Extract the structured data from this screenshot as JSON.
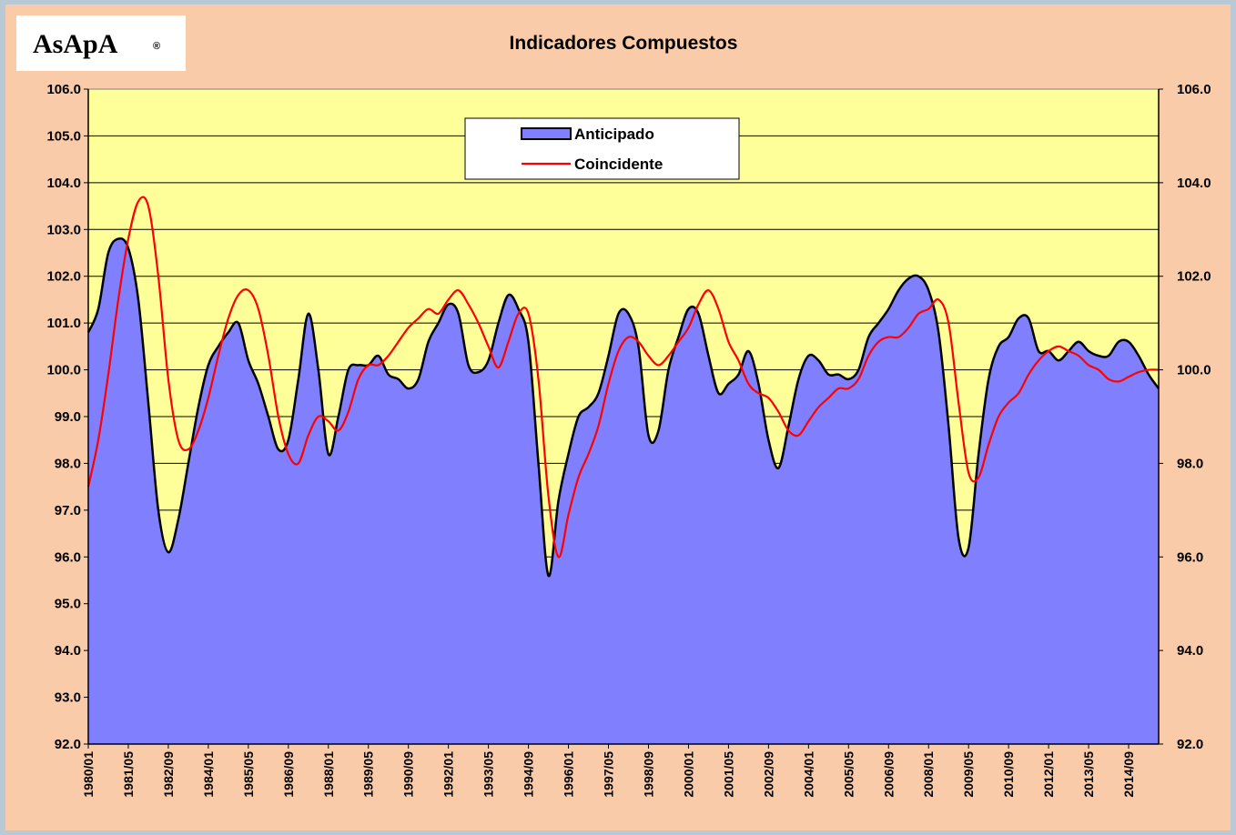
{
  "chart_data": {
    "type": "area",
    "logo": "AsApA",
    "logo_mark": "®",
    "title": "Indicadores Compuestos",
    "categories": [
      "1980/01",
      null,
      null,
      null,
      "1981/05",
      null,
      null,
      null,
      "1982/09",
      null,
      null,
      null,
      "1984/01",
      null,
      null,
      null,
      "1985/05",
      null,
      null,
      null,
      "1986/09",
      null,
      null,
      null,
      "1988/01",
      null,
      null,
      null,
      "1989/05",
      null,
      null,
      null,
      "1990/09",
      null,
      null,
      null,
      "1992/01",
      null,
      null,
      null,
      "1993/05",
      null,
      null,
      null,
      "1994/09",
      null,
      null,
      null,
      "1996/01",
      null,
      null,
      null,
      "1997/05",
      null,
      null,
      null,
      "1998/09",
      null,
      null,
      null,
      "2000/01",
      null,
      null,
      null,
      "2001/05",
      null,
      null,
      null,
      "2002/09",
      null,
      null,
      null,
      "2004/01",
      null,
      null,
      null,
      "2005/05",
      null,
      null,
      null,
      "2006/09",
      null,
      null,
      null,
      "2008/01",
      null,
      null,
      null,
      "2009/05",
      null,
      null,
      null,
      "2010/09",
      null,
      null,
      null,
      "2012/01",
      null,
      null,
      null,
      "2013/05",
      null,
      null,
      null,
      "2014/09",
      null,
      null,
      null
    ],
    "series": [
      {
        "name": "Anticipado",
        "type": "area",
        "color": "#8080ff",
        "values": [
          100.8,
          101.3,
          102.5,
          102.8,
          102.6,
          101.5,
          99.3,
          97.0,
          96.1,
          96.8,
          98.0,
          99.2,
          100.1,
          100.5,
          100.8,
          101.0,
          100.2,
          99.7,
          99.0,
          98.3,
          98.5,
          99.8,
          101.2,
          100.0,
          98.2,
          99.0,
          100.0,
          100.1,
          100.1,
          100.3,
          99.9,
          99.8,
          99.6,
          99.8,
          100.6,
          101.0,
          101.4,
          101.2,
          100.1,
          99.95,
          100.2,
          101.0,
          101.6,
          101.3,
          100.6,
          98.0,
          95.6,
          97.2,
          98.2,
          99.0,
          99.2,
          99.5,
          100.3,
          101.2,
          101.2,
          100.5,
          98.6,
          98.7,
          100.0,
          100.7,
          101.3,
          101.2,
          100.3,
          99.5,
          99.7,
          99.9,
          100.4,
          99.7,
          98.5,
          97.9,
          98.8,
          99.8,
          100.3,
          100.2,
          99.9,
          99.9,
          99.8,
          100.0,
          100.7,
          101.0,
          101.3,
          101.7,
          101.95,
          102.0,
          101.7,
          100.8,
          98.8,
          96.4,
          96.2,
          98.2,
          99.8,
          100.5,
          100.7,
          101.1,
          101.1,
          100.4,
          100.4,
          100.2,
          100.4,
          100.6,
          100.4,
          100.3,
          100.3,
          100.6,
          100.6,
          100.3,
          99.9,
          99.6
        ]
      },
      {
        "name": "Coincidente",
        "type": "line",
        "color": "#ff0000",
        "values": [
          97.5,
          98.5,
          99.9,
          101.5,
          102.8,
          103.6,
          103.5,
          102.0,
          99.8,
          98.5,
          98.3,
          98.7,
          99.4,
          100.3,
          101.1,
          101.6,
          101.7,
          101.3,
          100.3,
          99.0,
          98.2,
          98.0,
          98.6,
          99.0,
          98.9,
          98.7,
          99.1,
          99.8,
          100.1,
          100.1,
          100.3,
          100.6,
          100.9,
          101.1,
          101.3,
          101.2,
          101.5,
          101.7,
          101.4,
          101.0,
          100.5,
          100.05,
          100.6,
          101.2,
          101.2,
          99.8,
          97.3,
          96.0,
          96.9,
          97.7,
          98.2,
          98.8,
          99.7,
          100.4,
          100.7,
          100.6,
          100.3,
          100.1,
          100.3,
          100.6,
          100.9,
          101.4,
          101.7,
          101.3,
          100.6,
          100.2,
          99.7,
          99.5,
          99.4,
          99.1,
          98.7,
          98.6,
          98.9,
          99.2,
          99.4,
          99.6,
          99.6,
          99.8,
          100.3,
          100.6,
          100.7,
          100.7,
          100.9,
          101.2,
          101.3,
          101.5,
          101.0,
          99.3,
          97.8,
          97.7,
          98.4,
          99.0,
          99.3,
          99.5,
          99.9,
          100.2,
          100.4,
          100.5,
          100.4,
          100.3,
          100.1,
          100.0,
          99.8,
          99.75,
          99.85,
          99.95,
          100.0,
          100.0
        ]
      }
    ],
    "ylim": [
      92,
      106
    ],
    "yticks": [
      {
        "value": 92,
        "label": "92.0"
      },
      {
        "value": 93,
        "label": "93.0"
      },
      {
        "value": 94,
        "label": "94.0"
      },
      {
        "value": 95,
        "label": "95.0"
      },
      {
        "value": 96,
        "label": "96.0"
      },
      {
        "value": 97,
        "label": "97.0"
      },
      {
        "value": 98,
        "label": "98.0"
      },
      {
        "value": 99,
        "label": "99.0"
      },
      {
        "value": 100,
        "label": "100.0"
      },
      {
        "value": 101,
        "label": "101.0"
      },
      {
        "value": 102,
        "label": "102.0"
      },
      {
        "value": 103,
        "label": "103.0"
      },
      {
        "value": 104,
        "label": "104.0"
      },
      {
        "value": 105,
        "label": "105.0"
      },
      {
        "value": 106,
        "label": "106.0"
      }
    ],
    "y2lim": [
      92,
      106
    ],
    "y2ticks": [
      {
        "value": 92,
        "label": "92.0"
      },
      {
        "value": 94,
        "label": "94.0"
      },
      {
        "value": 96,
        "label": "96.0"
      },
      {
        "value": 98,
        "label": "98.0"
      },
      {
        "value": 100,
        "label": "100.0"
      },
      {
        "value": 102,
        "label": "102.0"
      },
      {
        "value": 104,
        "label": "104.0"
      },
      {
        "value": 106,
        "label": "106.0"
      }
    ],
    "grid": true,
    "plot_background": "#ffff99",
    "legend": "top"
  }
}
